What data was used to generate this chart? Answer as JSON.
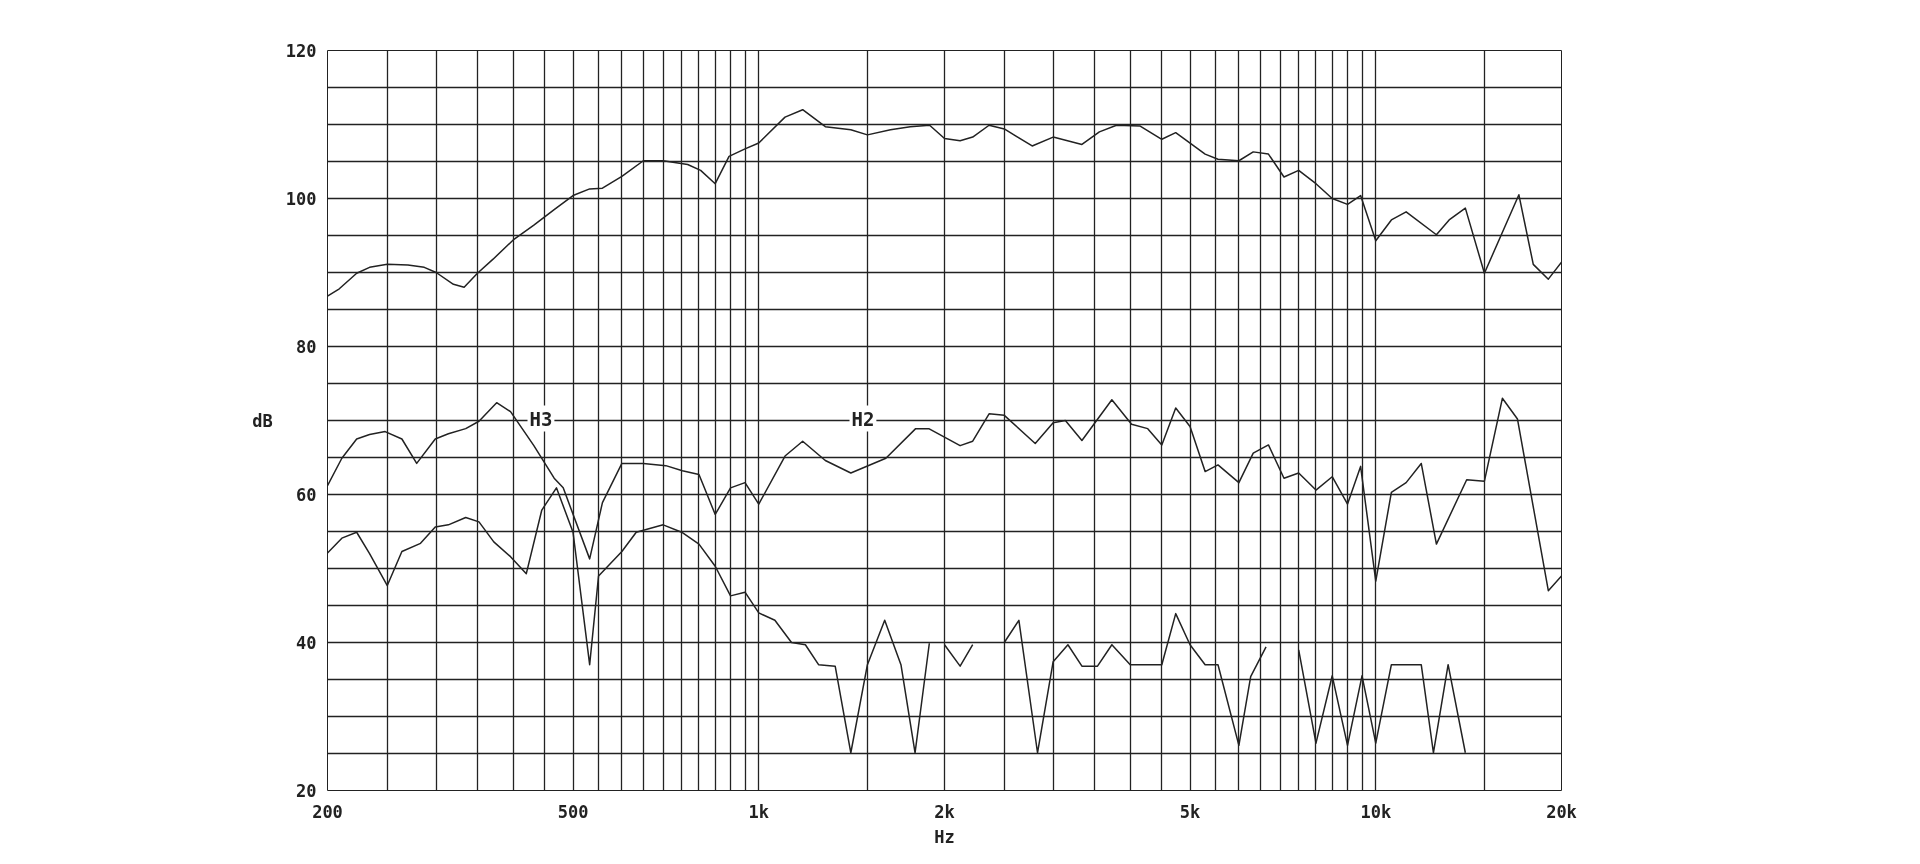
{
  "chart_data": {
    "type": "line",
    "xlabel": "Hz",
    "ylabel": "dB",
    "log": "x",
    "grid": true,
    "marker": "none",
    "line_style": "solid",
    "xlim": [
      200,
      20000
    ],
    "ylim": [
      20,
      120
    ],
    "xticks": [
      200,
      {
        "value": 250,
        "label": null
      },
      {
        "value": 300,
        "label": null
      },
      {
        "value": 350,
        "label": null
      },
      {
        "value": 400,
        "label": null
      },
      {
        "value": 450,
        "label": null
      },
      500,
      {
        "value": 550,
        "label": null
      },
      {
        "value": 600,
        "label": null
      },
      {
        "value": 650,
        "label": null
      },
      {
        "value": 700,
        "label": null
      },
      {
        "value": 750,
        "label": null
      },
      {
        "value": 800,
        "label": null
      },
      {
        "value": 850,
        "label": null
      },
      {
        "value": 900,
        "label": null
      },
      {
        "value": 950,
        "label": null
      },
      {
        "value": 1000,
        "label": "1k"
      },
      {
        "value": 1500,
        "label": null
      },
      {
        "value": 2000,
        "label": "2k"
      },
      {
        "value": 2500,
        "label": null
      },
      {
        "value": 3000,
        "label": null
      },
      {
        "value": 3500,
        "label": null
      },
      {
        "value": 4000,
        "label": null
      },
      {
        "value": 4500,
        "label": null
      },
      {
        "value": 5000,
        "label": "5k"
      },
      {
        "value": 5500,
        "label": null
      },
      {
        "value": 6000,
        "label": null
      },
      {
        "value": 6500,
        "label": null
      },
      {
        "value": 7000,
        "label": null
      },
      {
        "value": 7500,
        "label": null
      },
      {
        "value": 8000,
        "label": null
      },
      {
        "value": 8500,
        "label": null
      },
      {
        "value": 9000,
        "label": null
      },
      {
        "value": 9500,
        "label": null
      },
      {
        "value": 10000,
        "label": "10k"
      },
      {
        "value": 15000,
        "label": null
      },
      {
        "value": 20000,
        "label": "20k"
      }
    ],
    "yticks": [
      20,
      {
        "value": 25,
        "label": null
      },
      {
        "value": 30,
        "label": null
      },
      {
        "value": 35,
        "label": null
      },
      40,
      {
        "value": 45,
        "label": null
      },
      {
        "value": 50,
        "label": null
      },
      {
        "value": 55,
        "label": null
      },
      60,
      {
        "value": 65,
        "label": null
      },
      {
        "value": 70,
        "label": null
      },
      {
        "value": 75,
        "label": null
      },
      80,
      {
        "value": 85,
        "label": null
      },
      {
        "value": 90,
        "label": null
      },
      {
        "value": 95,
        "label": null
      },
      100,
      {
        "value": 105,
        "label": null
      },
      {
        "value": 110,
        "label": null
      },
      {
        "value": 115,
        "label": null
      },
      120
    ],
    "annotations": [
      "H3",
      "H2"
    ],
    "series": [
      {
        "color": "#222222",
        "x": [
          200,
          209,
          223,
          234,
          250,
          270,
          287,
          300,
          320,
          333,
          350,
          371,
          400,
          432,
          466,
          500,
          532,
          558,
          600,
          650,
          700,
          767,
          805,
          850,
          895,
          950,
          1000,
          1103,
          1178,
          1282,
          1410,
          1500,
          1635,
          1760,
          1892,
          2000,
          2120,
          2222,
          2362,
          2500,
          2774,
          3000,
          3340,
          3565,
          3800,
          4145,
          4500,
          4740,
          5290,
          5550,
          6000,
          6330,
          6700,
          7100,
          7500,
          8000,
          8500,
          9000,
          9450,
          10000,
          10600,
          11200,
          12540,
          13150,
          13970,
          15000,
          17060,
          18000,
          19040,
          20000
        ],
        "values": [
          86.8,
          87.8,
          89.9,
          90.7,
          91.1,
          91.0,
          90.7,
          90.0,
          88.4,
          88.0,
          89.9,
          91.8,
          94.4,
          96.4,
          98.5,
          100.4,
          101.3,
          101.4,
          103.0,
          105.1,
          105.1,
          104.6,
          103.8,
          102.0,
          105.7,
          106.7,
          107.5,
          111.0,
          112.0,
          109.7,
          109.3,
          108.6,
          109.3,
          109.7,
          109.9,
          108.1,
          107.8,
          108.3,
          109.9,
          109.4,
          107.1,
          108.3,
          107.3,
          109.0,
          109.9,
          109.8,
          108.0,
          108.9,
          106.0,
          105.3,
          105.1,
          106.3,
          106.0,
          102.9,
          103.8,
          102.0,
          100.0,
          99.2,
          100.4,
          94.3,
          97.1,
          98.2,
          95.1,
          97.1,
          98.7,
          89.9,
          100.5,
          91.1,
          89.1,
          91.4
        ]
      },
      {
        "color": "#222222",
        "x": [
          200,
          211,
          223,
          234,
          248,
          264,
          279,
          299,
          314,
          335,
          352,
          376,
          396,
          432,
          466,
          482,
          532,
          558,
          600,
          650,
          707,
          752,
          800,
          850,
          900,
          950,
          1000,
          1103,
          1178,
          1282,
          1410,
          1607,
          1796,
          1886,
          2120,
          2222,
          2362,
          2500,
          2806,
          3000,
          3140,
          3340,
          3735,
          4020,
          4270,
          4500,
          4740,
          5000,
          5290,
          5550,
          6000,
          6330,
          6700,
          7100,
          7500,
          8000,
          8500,
          9000,
          9450,
          10000,
          10600,
          11200,
          11850,
          12540,
          14040,
          15000,
          16040,
          16970,
          19040,
          20000
        ],
        "values": [
          61.2,
          64.9,
          67.5,
          68.1,
          68.5,
          67.5,
          64.2,
          67.5,
          68.2,
          68.9,
          69.9,
          72.4,
          71.2,
          66.6,
          62.2,
          60.9,
          51.3,
          58.9,
          64.2,
          64.2,
          63.9,
          63.2,
          62.7,
          57.3,
          60.9,
          61.6,
          58.7,
          65.2,
          67.2,
          64.6,
          62.9,
          64.9,
          68.9,
          68.9,
          66.6,
          67.2,
          70.9,
          70.7,
          66.9,
          69.7,
          70.0,
          67.3,
          72.8,
          69.5,
          68.9,
          66.7,
          71.7,
          69.2,
          63.1,
          64.0,
          61.6,
          65.6,
          66.7,
          62.2,
          62.9,
          60.6,
          62.4,
          58.7,
          63.8,
          48.3,
          60.3,
          61.6,
          64.2,
          53.3,
          62.0,
          61.8,
          73.0,
          70.2,
          47.0,
          49.0
        ]
      },
      {
        "color": "#222222",
        "x": [
          200,
          211,
          223,
          234,
          250,
          264,
          283,
          299,
          314,
          335,
          352,
          372,
          396,
          420,
          445,
          470,
          500,
          532,
          550,
          600,
          633,
          700,
          750,
          800,
          850,
          900,
          950,
          1000,
          1062,
          1130,
          1190,
          1250,
          1330,
          1410,
          1500,
          1600,
          1700,
          1792,
          1890,
          1950,
          2000,
          2120,
          2222,
          2360,
          2500,
          2640,
          2830,
          3000,
          3170,
          3340,
          3540,
          3735,
          4000,
          4500,
          4740,
          5000,
          5290,
          5550,
          6000,
          6270,
          6640,
          7000,
          7500,
          8000,
          8500,
          9000,
          9500,
          10000,
          10600,
          11850,
          12400,
          13100,
          13970
        ],
        "values": [
          52.1,
          54.1,
          54.9,
          52.0,
          47.7,
          52.3,
          53.4,
          55.6,
          55.9,
          56.9,
          56.3,
          53.6,
          51.6,
          49.3,
          57.9,
          60.9,
          54.9,
          37.0,
          49.0,
          52.3,
          54.9,
          55.9,
          54.9,
          53.3,
          50.3,
          46.3,
          46.8,
          44.0,
          43.0,
          40.0,
          39.7,
          37.0,
          36.8,
          25.1,
          37.0,
          43.0,
          37.0,
          25.1,
          39.9,
          null,
          39.7,
          36.8,
          39.7,
          null,
          40.0,
          43.0,
          25.1,
          37.4,
          39.7,
          36.8,
          36.8,
          39.7,
          37.0,
          37.0,
          43.9,
          39.7,
          37.0,
          37.0,
          26.1,
          35.4,
          39.4,
          null,
          39.0,
          26.4,
          35.5,
          26.1,
          35.5,
          26.4,
          37.0,
          37.0,
          25.1,
          37.0,
          25.1
        ]
      }
    ]
  }
}
